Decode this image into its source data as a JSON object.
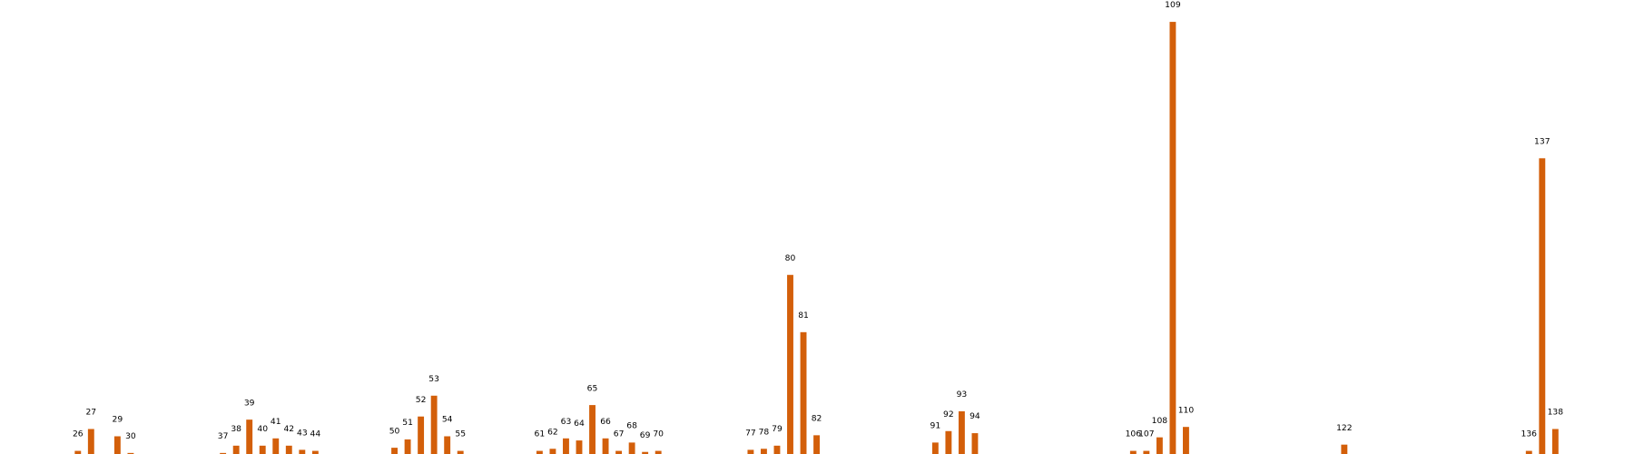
{
  "chart_data": {
    "type": "bar",
    "color": "#d35f0a",
    "x": [
      26,
      27,
      29,
      30,
      37,
      38,
      39,
      40,
      41,
      42,
      43,
      44,
      50,
      51,
      52,
      53,
      54,
      55,
      61,
      62,
      63,
      64,
      65,
      66,
      67,
      68,
      69,
      70,
      77,
      78,
      79,
      80,
      81,
      82,
      91,
      92,
      93,
      94,
      106,
      107,
      108,
      109,
      110,
      122,
      136,
      137,
      138
    ],
    "values": [
      3,
      24,
      17,
      1,
      1,
      8,
      33,
      8,
      15,
      8,
      4,
      3,
      6,
      14,
      36,
      56,
      17,
      3,
      3,
      5,
      15,
      13,
      47,
      15,
      3,
      11,
      2,
      3,
      4,
      5,
      8,
      172,
      117,
      18,
      11,
      22,
      41,
      20,
      3,
      3,
      16,
      415,
      26,
      9,
      3,
      284,
      24
    ],
    "xlim": [
      20.16,
      143.9
    ],
    "ylim": [
      0,
      436
    ]
  }
}
